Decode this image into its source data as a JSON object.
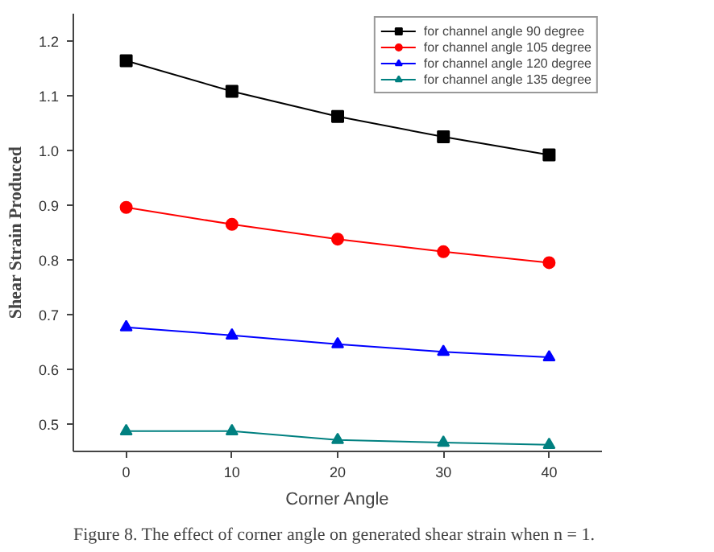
{
  "chart_data": {
    "type": "line",
    "xlabel": "Corner Angle",
    "ylabel": "Shear Strain Produced",
    "annotations": [
      "Figure 8. The effect of corner angle on generated shear strain when n = 1."
    ],
    "x": [
      0,
      10,
      20,
      30,
      40
    ],
    "series": [
      {
        "name": "for channel angle 90 degree",
        "color": "#000000",
        "marker": "square",
        "values": [
          1.164,
          1.108,
          1.062,
          1.025,
          0.992
        ]
      },
      {
        "name": "for channel angle 105 degree",
        "color": "#ff0000",
        "marker": "circle",
        "values": [
          0.896,
          0.865,
          0.838,
          0.815,
          0.795
        ]
      },
      {
        "name": "for channel angle 120 degree",
        "color": "#0000ff",
        "marker": "triangle",
        "values": [
          0.677,
          0.662,
          0.646,
          0.632,
          0.622
        ]
      },
      {
        "name": "for channel angle 135 degree",
        "color": "#008080",
        "marker": "triangle",
        "values": [
          0.487,
          0.487,
          0.471,
          0.466,
          0.462
        ]
      }
    ],
    "xlim": [
      -5,
      45
    ],
    "xticks": [
      0,
      10,
      20,
      30,
      40
    ],
    "ylim": [
      0.45,
      1.25
    ],
    "yticks": [
      {
        "value": 0.5,
        "label": "0.5"
      },
      {
        "value": 0.6,
        "label": "0.6"
      },
      {
        "value": 0.7,
        "label": "0.7"
      },
      {
        "value": 0.8,
        "label": "0.8"
      },
      {
        "value": 0.9,
        "label": "0.9"
      },
      {
        "value": 1.0,
        "label": "1.0"
      },
      {
        "value": 1.1,
        "label": "1.1"
      },
      {
        "value": 1.2,
        "label": "1.2"
      }
    ],
    "grid": false,
    "legend": "top right",
    "line_style": "solid"
  }
}
